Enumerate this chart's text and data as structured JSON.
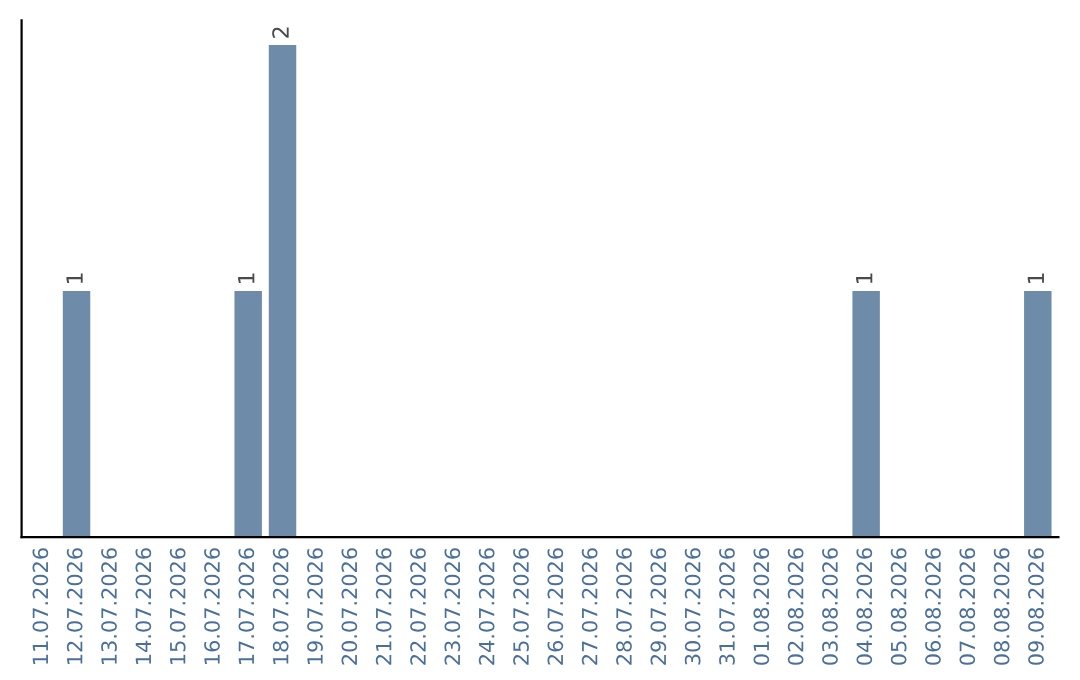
{
  "chart_data": {
    "type": "bar",
    "categories": [
      "11.07.2026",
      "12.07.2026",
      "13.07.2026",
      "14.07.2026",
      "15.07.2026",
      "16.07.2026",
      "17.07.2026",
      "18.07.2026",
      "19.07.2026",
      "20.07.2026",
      "21.07.2026",
      "22.07.2026",
      "23.07.2026",
      "24.07.2026",
      "25.07.2026",
      "26.07.2026",
      "27.07.2026",
      "28.07.2026",
      "29.07.2026",
      "30.07.2026",
      "31.07.2026",
      "01.08.2026",
      "02.08.2026",
      "03.08.2026",
      "04.08.2026",
      "05.08.2026",
      "06.08.2026",
      "07.08.2026",
      "08.08.2026",
      "09.08.2026"
    ],
    "values": [
      0,
      1,
      0,
      0,
      0,
      0,
      1,
      2,
      0,
      0,
      0,
      0,
      0,
      0,
      0,
      0,
      0,
      0,
      0,
      0,
      0,
      0,
      0,
      0,
      1,
      0,
      0,
      0,
      0,
      1
    ],
    "value_labels": [
      null,
      "1",
      null,
      null,
      null,
      null,
      "1",
      "2",
      null,
      null,
      null,
      null,
      null,
      null,
      null,
      null,
      null,
      null,
      null,
      null,
      null,
      null,
      null,
      null,
      "1",
      null,
      null,
      null,
      null,
      "1"
    ],
    "color": "#6e8caa",
    "tick_labels": "x",
    "grid": false,
    "legend": false
  }
}
